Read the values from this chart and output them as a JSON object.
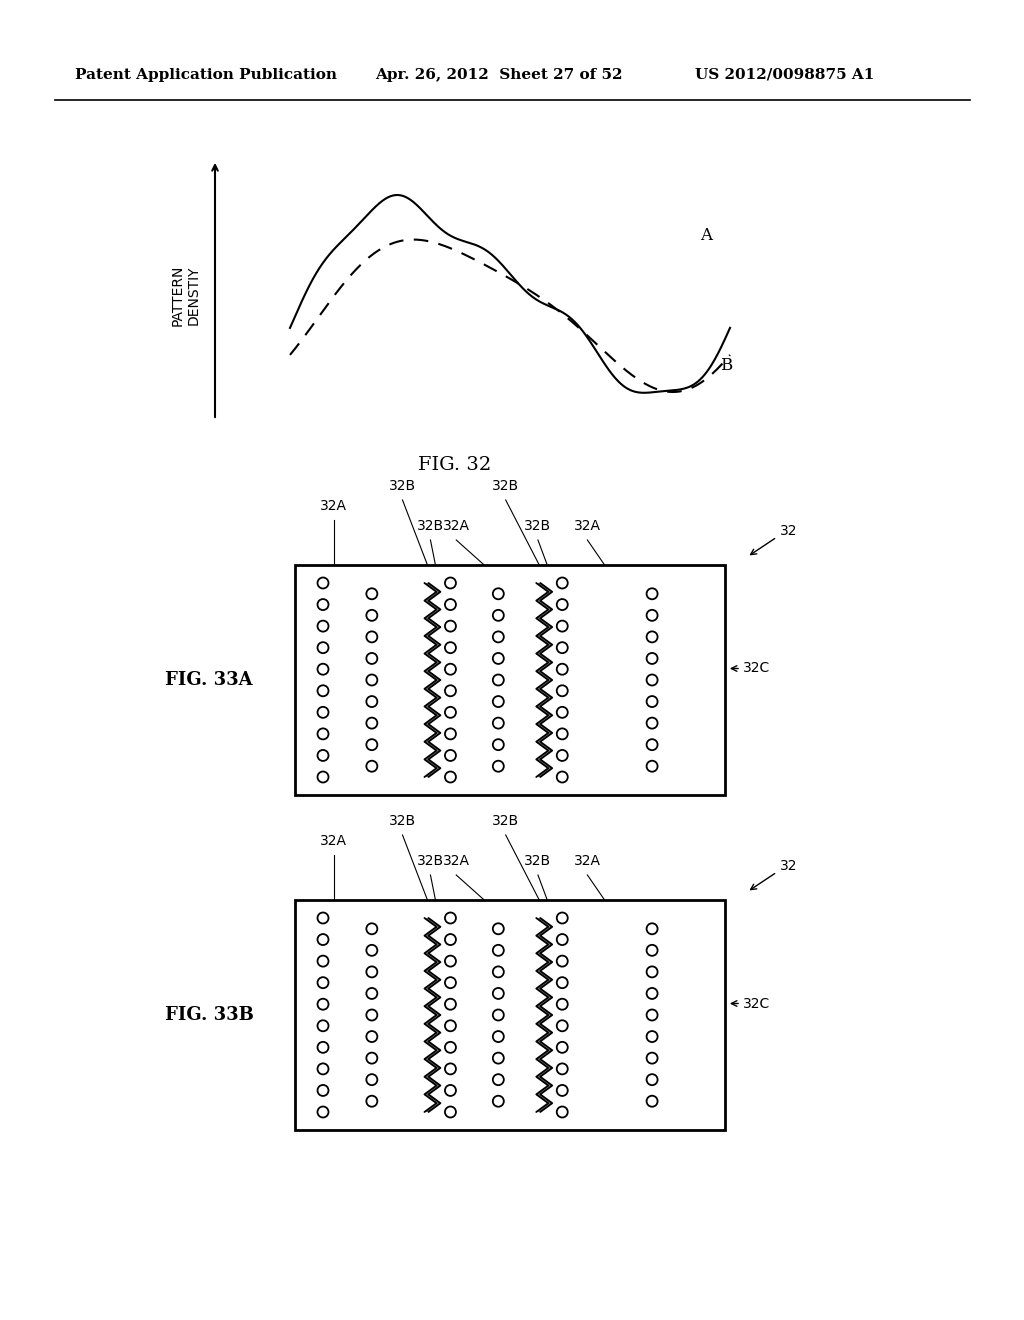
{
  "header_left": "Patent Application Publication",
  "header_mid": "Apr. 26, 2012  Sheet 27 of 52",
  "header_right": "US 2012/0098875 A1",
  "fig32_label": "FIG. 32",
  "fig33a_label": "FIG. 33A",
  "fig33b_label": "FIG. 33B",
  "axis_label_line1": "PATTERN",
  "axis_label_line2": "DENSTIY",
  "curve_A_label": "A",
  "curve_B_label": "B",
  "bg_color": "#ffffff",
  "line_color": "#000000"
}
